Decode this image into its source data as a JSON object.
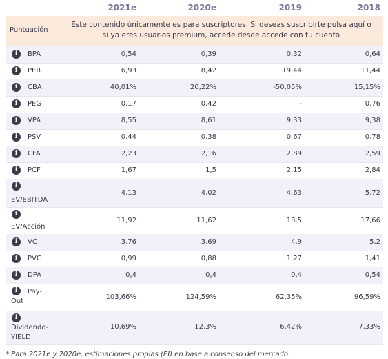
{
  "columns": [
    "2021e",
    "2020e",
    "2019",
    "2018"
  ],
  "promo": {
    "label": "Puntuación",
    "line1": "Este contenido únicamente es para suscriptores. Si deseas suscribirte pulsa aquí o",
    "line2": "si ya eres usuarios premium, accede desde accede con tu cuenta"
  },
  "rows": [
    {
      "name": "BPA",
      "name2": "",
      "values": [
        "0,54",
        "0,39",
        "0,32",
        "0,64"
      ]
    },
    {
      "name": "PER",
      "name2": "",
      "values": [
        "6,93",
        "8,42",
        "19,44",
        "11,44"
      ]
    },
    {
      "name": "CBA",
      "name2": "",
      "values": [
        "40,01%",
        "20,22%",
        "-50,05%",
        "15,15%"
      ]
    },
    {
      "name": "PEG",
      "name2": "",
      "values": [
        "0,17",
        "0,42",
        "-",
        "0,76"
      ]
    },
    {
      "name": "VPA",
      "name2": "",
      "values": [
        "8,55",
        "8,61",
        "9,33",
        "9,38"
      ]
    },
    {
      "name": "PSV",
      "name2": "",
      "values": [
        "0,44",
        "0,38",
        "0,67",
        "0,78"
      ]
    },
    {
      "name": "CFA",
      "name2": "",
      "values": [
        "2,23",
        "2,16",
        "2,89",
        "2,59"
      ]
    },
    {
      "name": "PCF",
      "name2": "",
      "values": [
        "1,67",
        "1,5",
        "2,15",
        "2,84"
      ]
    },
    {
      "name": "EV/EBITDA",
      "name2": "",
      "values": [
        "4,13",
        "4,02",
        "4,63",
        "5,72"
      ]
    },
    {
      "name": "EV/Acción",
      "name2": "",
      "values": [
        "11,92",
        "11,62",
        "13,5",
        "17,66"
      ]
    },
    {
      "name": "VC",
      "name2": "",
      "values": [
        "3,76",
        "3,69",
        "4,9",
        "5,2"
      ]
    },
    {
      "name": "PVC",
      "name2": "",
      "values": [
        "0,99",
        "0,88",
        "1,27",
        "1,41"
      ]
    },
    {
      "name": "DPA",
      "name2": "",
      "values": [
        "0,4",
        "0,4",
        "0,4",
        "0,54"
      ]
    },
    {
      "name": "Pay-",
      "name2": "Out",
      "values": [
        "103,66%",
        "124,59%",
        "62,35%",
        "96,59%"
      ]
    },
    {
      "name": "Dividendo-",
      "name2": "YIELD",
      "values": [
        "10,69%",
        "12,3%",
        "6,42%",
        "7,33%"
      ]
    }
  ],
  "info_glyph": "i",
  "footnote": "* Para 2021e y 2020e, estimaciones propias (EI) en base a consenso del mercado."
}
